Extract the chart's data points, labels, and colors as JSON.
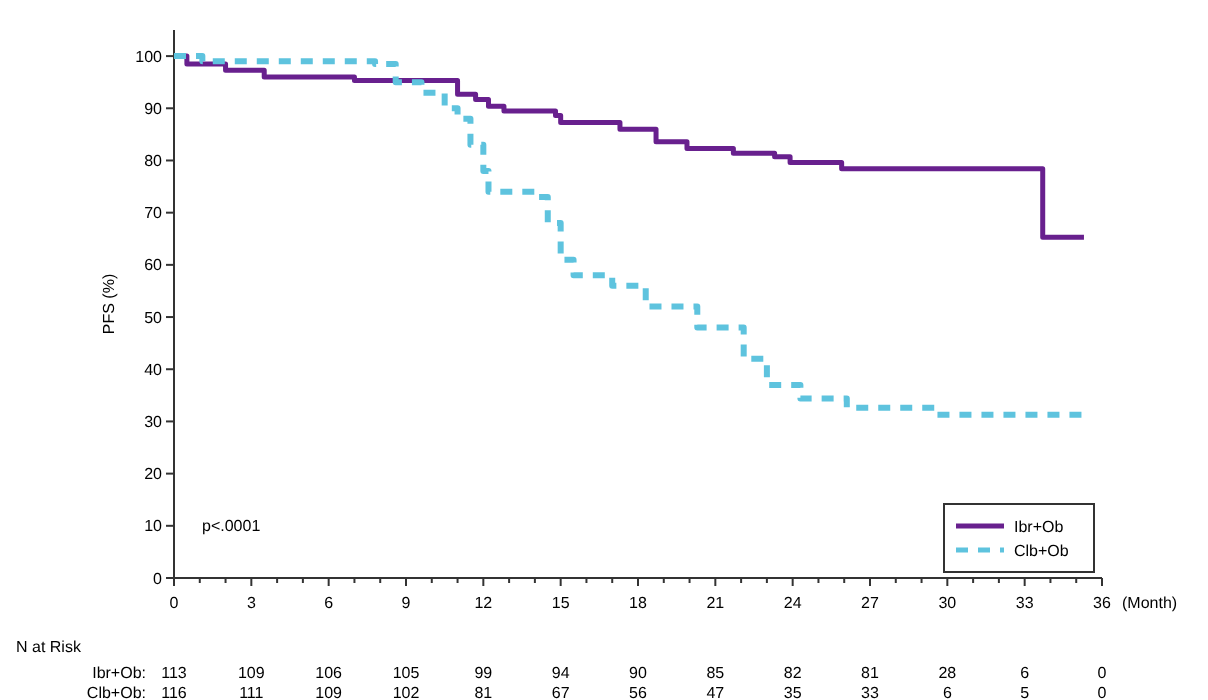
{
  "chart_data": {
    "type": "step",
    "ylabel": "PFS (%)",
    "xlabel": "(Month)",
    "xlim": [
      0,
      36
    ],
    "ylim": [
      0,
      105
    ],
    "xticks": [
      0,
      {
        "value": 1,
        "label": null
      },
      {
        "value": 2,
        "label": null
      },
      3,
      {
        "value": 4,
        "label": null
      },
      {
        "value": 5,
        "label": null
      },
      6,
      {
        "value": 7,
        "label": null
      },
      {
        "value": 8,
        "label": null
      },
      9,
      {
        "value": 10,
        "label": null
      },
      {
        "value": 11,
        "label": null
      },
      12,
      {
        "value": 13,
        "label": null
      },
      {
        "value": 14,
        "label": null
      },
      15,
      {
        "value": 16,
        "label": null
      },
      {
        "value": 17,
        "label": null
      },
      18,
      {
        "value": 19,
        "label": null
      },
      {
        "value": 20,
        "label": null
      },
      21,
      {
        "value": 22,
        "label": null
      },
      {
        "value": 23,
        "label": null
      },
      24,
      {
        "value": 25,
        "label": null
      },
      {
        "value": 26,
        "label": null
      },
      27,
      {
        "value": 28,
        "label": null
      },
      {
        "value": 29,
        "label": null
      },
      30,
      {
        "value": 31,
        "label": null
      },
      {
        "value": 32,
        "label": null
      },
      33,
      {
        "value": 34,
        "label": null
      },
      {
        "value": 35,
        "label": null
      },
      36
    ],
    "yticks": [
      0,
      10,
      20,
      30,
      40,
      50,
      60,
      70,
      80,
      90,
      100
    ],
    "grid": false,
    "legend": "bottom right",
    "marker": "none",
    "series": [
      {
        "name": "Ibr+Ob",
        "color": "#68208e",
        "line_style": "solid",
        "x": [
          0,
          0.5,
          2.0,
          3.5,
          7.0,
          11.0,
          11.7,
          12.2,
          12.8,
          14.8,
          15.0,
          17.3,
          18.7,
          19.9,
          21.7,
          23.3,
          23.9,
          25.9,
          33.7,
          35.3
        ],
        "values": [
          100,
          98.5,
          97.3,
          96,
          95.3,
          92.7,
          91.7,
          90.4,
          89.5,
          88.6,
          87.3,
          86,
          83.6,
          82.3,
          81.4,
          80.7,
          79.6,
          78.4,
          65.3,
          65.3
        ]
      },
      {
        "name": "Clb+Ob",
        "color": "#5ec3de",
        "line_style": "dashed",
        "x": [
          0,
          1.1,
          7.8,
          8.6,
          9.6,
          10.5,
          11.0,
          11.5,
          12.0,
          12.2,
          14.0,
          14.5,
          15.0,
          15.5,
          17.0,
          18.3,
          20.3,
          22.1,
          23.0,
          24.3,
          26.1,
          29.5,
          35.3
        ],
        "values": [
          100,
          99,
          98.5,
          95,
          93,
          90,
          88,
          83,
          78,
          74,
          73,
          68,
          61,
          58,
          56,
          52,
          48,
          42,
          37,
          34.4,
          32.6,
          31.3,
          31.3
        ]
      }
    ],
    "annotations": [
      "p<.0001",
      "N at Risk",
      "Ibr+Ob: 113 109 106 105 99 94 90 85 82 81 28 6 0",
      "Clb+Ob: 116 111 109 102 81 67 56 47 35 33 6 5 0"
    ]
  }
}
